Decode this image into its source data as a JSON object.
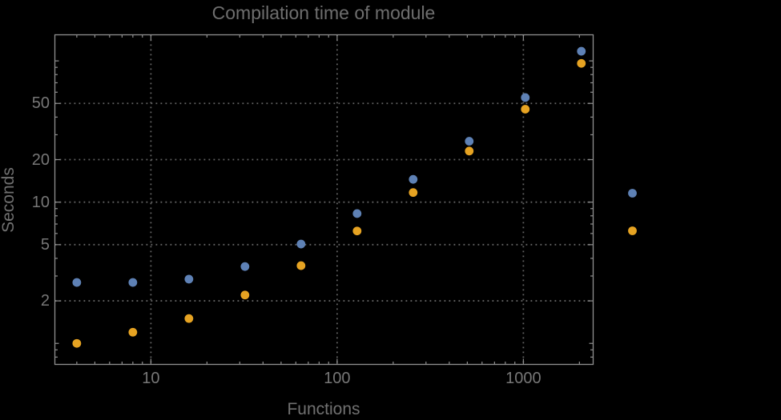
{
  "colors": {
    "background": "#000000",
    "frame": "#8f8f8f",
    "grid": "#666666",
    "text": "#777777",
    "series_blue": "#5e81b5",
    "series_orange": "#e6a322"
  },
  "chart_data": {
    "type": "scatter",
    "title": "Compilation time of module",
    "xlabel": "Functions",
    "ylabel": "Seconds",
    "xscale": "log",
    "yscale": "log",
    "xlim": [
      3.05,
      2370
    ],
    "ylim": [
      0.71,
      153
    ],
    "grid": true,
    "grid_style": "dotted",
    "x_major_ticks": [
      10,
      100,
      1000
    ],
    "x_tick_labels": [
      "10",
      "100",
      "1000"
    ],
    "y_major_ticks": [
      2,
      5,
      10,
      20,
      50
    ],
    "y_tick_labels": [
      "2",
      "5",
      "10",
      "20",
      "50"
    ],
    "x": [
      4,
      8,
      16,
      32,
      64,
      128,
      256,
      512,
      1024,
      2048
    ],
    "series": [
      {
        "name": "blue",
        "color": "#5e81b5",
        "values": [
          2.7,
          2.7,
          2.85,
          3.5,
          5.05,
          8.3,
          14.5,
          27,
          55,
          117
        ]
      },
      {
        "name": "orange",
        "color": "#e6a322",
        "values": [
          1.0,
          1.2,
          1.5,
          2.2,
          3.55,
          6.25,
          11.7,
          23,
          45.5,
          96
        ]
      }
    ],
    "legend": {
      "position": "outside-right",
      "entries": [
        {
          "marker_color": "#5e81b5",
          "label": ""
        },
        {
          "marker_color": "#e6a322",
          "label": ""
        }
      ]
    }
  }
}
